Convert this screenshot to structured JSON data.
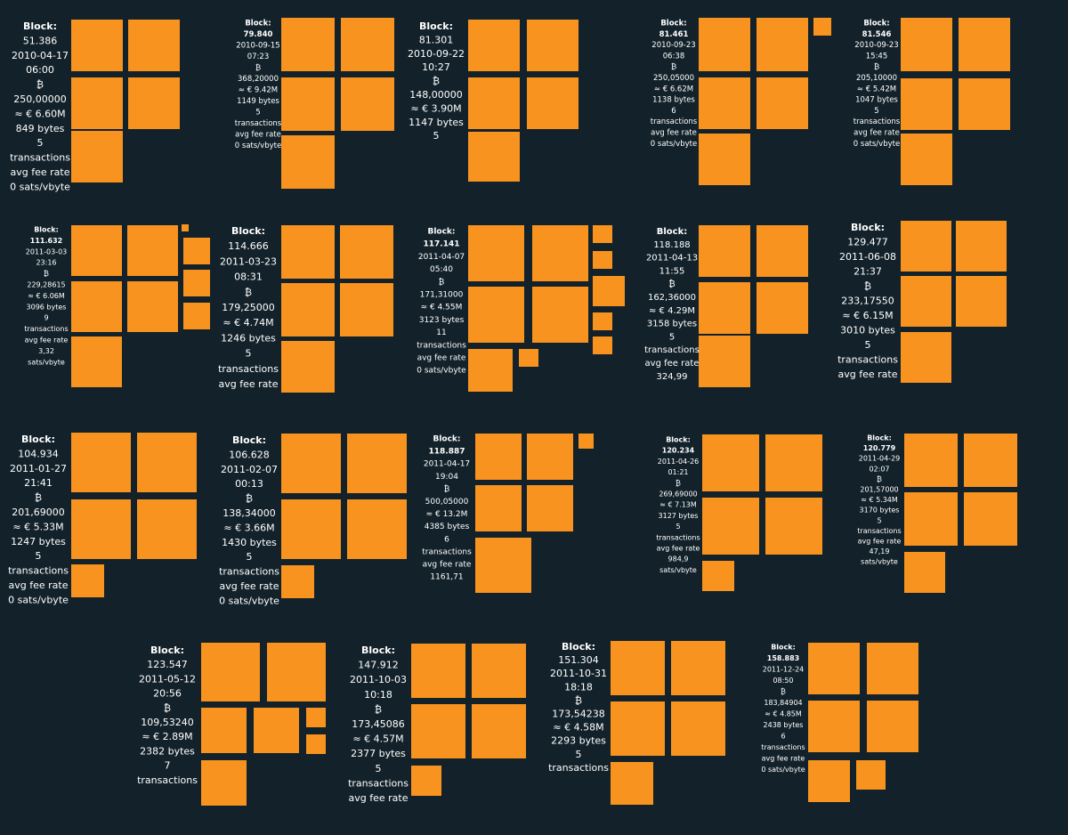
{
  "blocks": [
    {
      "lines": [
        "Block:",
        "51.386",
        "2010-04-17",
        "06:00",
        "₿",
        "250,00000",
        "≈ € 6.60M",
        "849 bytes",
        "5",
        "transactions",
        "avg fee rate",
        "0 sats/vbyte"
      ]
    },
    {
      "lines": [
        "Block:",
        "79.840",
        "2010-09-15",
        "07:23",
        "₿",
        "368,20000",
        "≈ € 9.42M",
        "1149 bytes",
        "5",
        "transactions",
        "avg fee rate",
        "0 sats/vbyte"
      ]
    },
    {
      "lines": [
        "Block:",
        "81.301",
        "2010-09-22",
        "10:27",
        "₿",
        "148,00000",
        "≈ € 3.90M",
        "1147 bytes",
        "5"
      ]
    },
    {
      "lines": [
        "Block:",
        "81.461",
        "2010-09-23",
        "06:38",
        "₿",
        "250,05000",
        "≈ € 6.62M",
        "1138 bytes",
        "6",
        "transactions",
        "avg fee rate",
        "0 sats/vbyte"
      ]
    },
    {
      "lines": [
        "Block:",
        "81.546",
        "2010-09-23",
        "15:45",
        "₿",
        "205,10000",
        "≈ € 5.42M",
        "1047 bytes",
        "5",
        "transactions",
        "avg fee rate",
        "0 sats/vbyte"
      ]
    },
    {
      "lines": [
        "Block:",
        "111.632",
        "2011-03-03",
        "23:16",
        "₿",
        "229,28615",
        "≈ € 6.06M",
        "3096 bytes",
        "9",
        "transactions",
        "avg fee rate",
        "3,32",
        "sats/vbyte"
      ]
    },
    {
      "lines": [
        "Block:",
        "114.666",
        "2011-03-23",
        "08:31",
        "₿",
        "179,25000",
        "≈ € 4.74M",
        "1246 bytes",
        "5",
        "transactions",
        "avg fee rate"
      ]
    },
    {
      "lines": [
        "Block:",
        "117.141",
        "2011-04-07",
        "05:40",
        "₿",
        "171,31000",
        "≈ € 4.55M",
        "3123 bytes",
        "11",
        "transactions",
        "avg fee rate",
        "0 sats/vbyte"
      ]
    },
    {
      "lines": [
        "Block:",
        "118.188",
        "2011-04-13",
        "11:55",
        "₿",
        "162,36000",
        "≈ € 4.29M",
        "3158 bytes",
        "5",
        "transactions",
        "avg fee rate",
        "324,99"
      ]
    },
    {
      "lines": [
        "Block:",
        "129.477",
        "2011-06-08",
        "21:37",
        "₿",
        "233,17550",
        "≈ € 6.15M",
        "3010 bytes",
        "5",
        "transactions",
        "avg fee rate"
      ]
    },
    {
      "lines": [
        "Block:",
        "104.934",
        "2011-01-27",
        "21:41",
        "₿",
        "201,69000",
        "≈ € 5.33M",
        "1247 bytes",
        "5",
        "transactions",
        "avg fee rate",
        "0 sats/vbyte"
      ]
    },
    {
      "lines": [
        "Block:",
        "106.628",
        "2011-02-07",
        "00:13",
        "₿",
        "138,34000",
        "≈ € 3.66M",
        "1430 bytes",
        "5",
        "transactions",
        "avg fee rate",
        "0 sats/vbyte"
      ]
    },
    {
      "lines": [
        "Block:",
        "118.887",
        "2011-04-17",
        "19:04",
        "₿",
        "500,05000",
        "≈ € 13.2M",
        "4385 bytes",
        "6",
        "transactions",
        "avg fee rate",
        "1161,71"
      ]
    },
    {
      "lines": [
        "Block:",
        "120.234",
        "2011-04-26",
        "01:21",
        "₿",
        "269,69000",
        "≈ € 7.13M",
        "3127 bytes",
        "5",
        "transactions",
        "avg fee rate",
        "984,9",
        "sats/vbyte"
      ]
    },
    {
      "lines": [
        "Block:",
        "120.779",
        "2011-04-29",
        "02:07",
        "₿",
        "201,57000",
        "≈ € 5.34M",
        "3170 bytes",
        "5",
        "transactions",
        "avg fee rate",
        "47,19",
        "sats/vbyte"
      ]
    },
    {
      "lines": [
        "Block:",
        "123.547",
        "2011-05-12",
        "20:56",
        "₿",
        "109,53240",
        "≈ € 2.89M",
        "2382 bytes",
        "7",
        "transactions"
      ]
    },
    {
      "lines": [
        "Block:",
        "147.912",
        "2011-10-03",
        "10:18",
        "₿",
        "173,45086",
        "≈ € 4.57M",
        "2377 bytes",
        "5",
        "transactions",
        "avg fee rate"
      ]
    },
    {
      "lines": [
        "Block:",
        "151.304",
        "2011-10-31",
        "18:18",
        "₿",
        "173,54238",
        "≈ € 4.58M",
        "2293 bytes",
        "5",
        "transactions"
      ]
    },
    {
      "lines": [
        "Block:",
        "158.883",
        "2011-12-24",
        "08:50",
        "₿",
        "183,84904",
        "≈ € 4.85M",
        "2438 bytes",
        "6",
        "transactions",
        "avg fee rate",
        "0 sats/vbyte"
      ]
    }
  ]
}
